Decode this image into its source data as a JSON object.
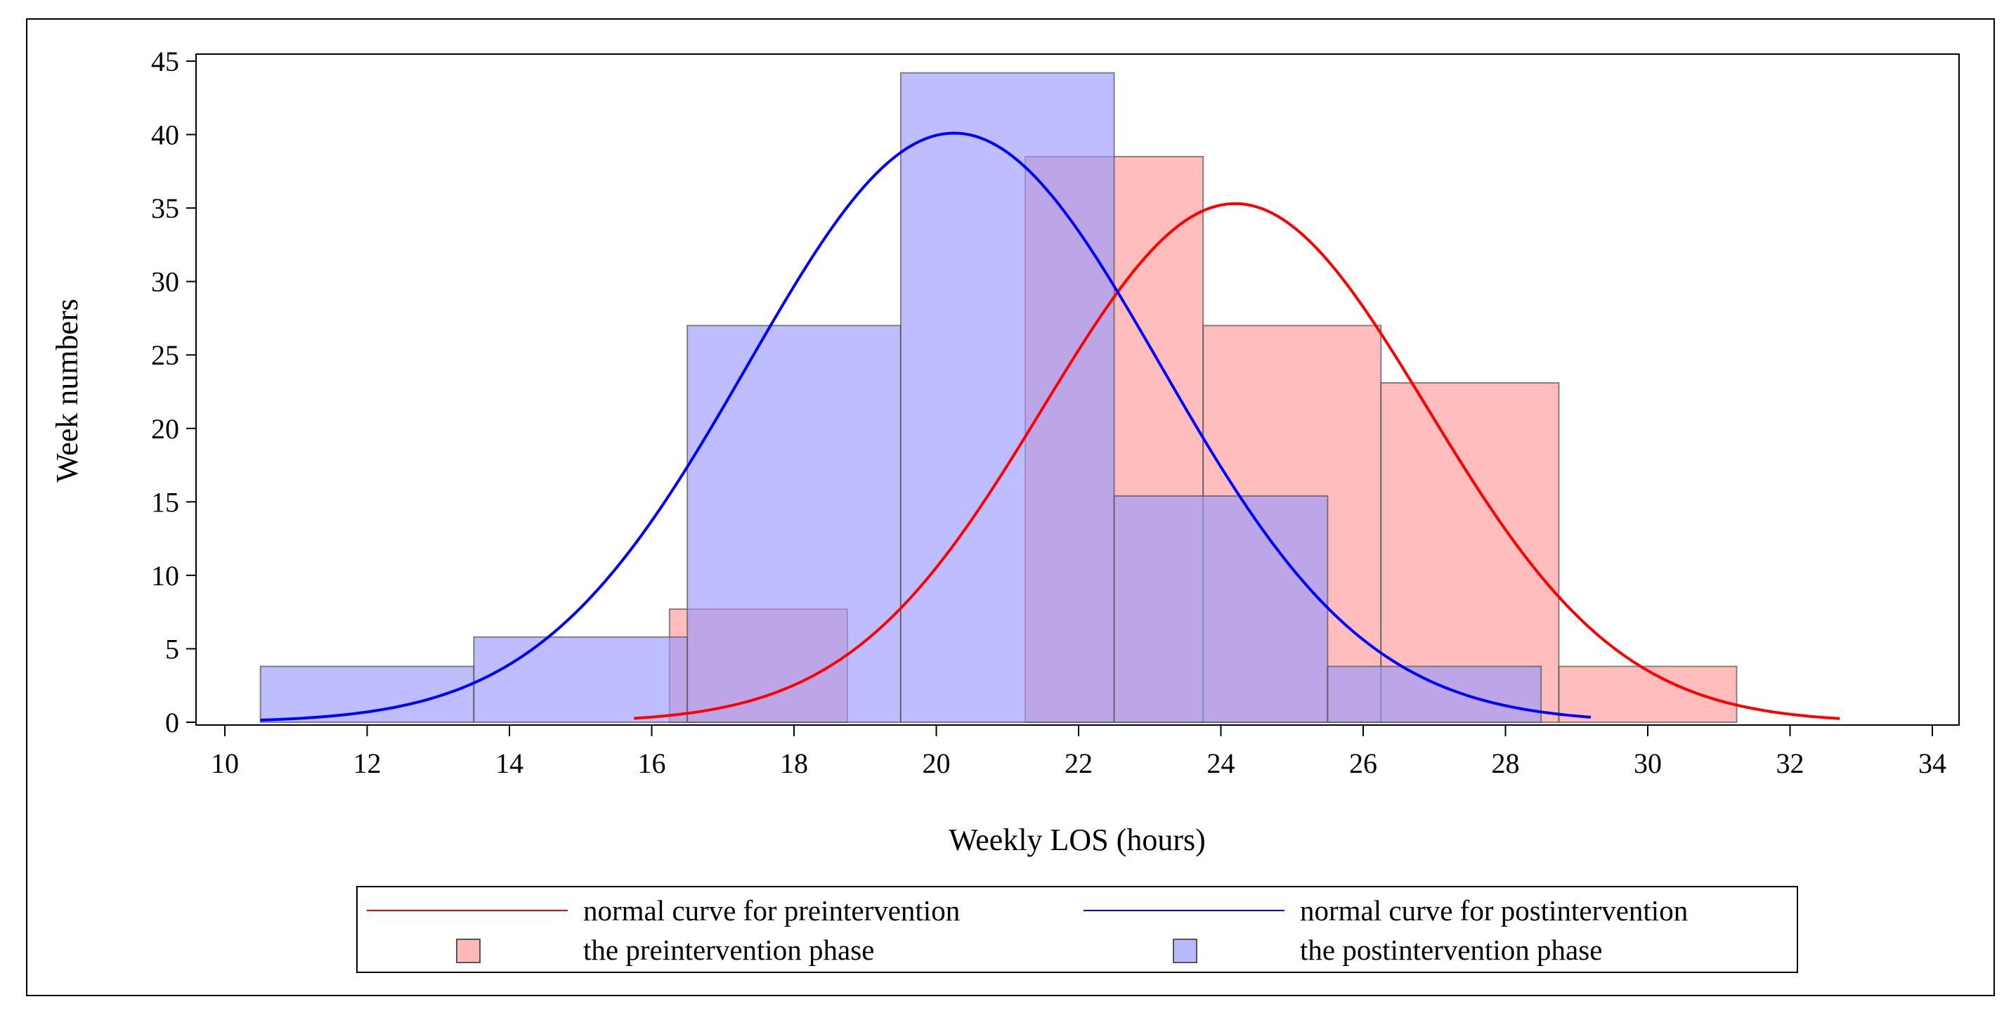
{
  "chart_data": {
    "type": "bar",
    "xlabel": "Weekly LOS (hours)",
    "ylabel": "Week numbers",
    "xlim": [
      10,
      34
    ],
    "ylim": [
      0,
      45
    ],
    "xticks": [
      10,
      12,
      14,
      16,
      18,
      20,
      22,
      24,
      26,
      28,
      30,
      32,
      34
    ],
    "yticks": [
      0,
      5,
      10,
      15,
      20,
      25,
      30,
      35,
      40,
      45
    ],
    "grid": false,
    "colors": {
      "pre_fill": "#ff9a9a",
      "pre_curve": "#ff0000",
      "post_fill": "#9a9aff",
      "post_curve": "#0000ff",
      "bar_stroke": "#555555"
    },
    "histograms": [
      {
        "name": "the preintervention phase",
        "bins": [
          {
            "start": 16.25,
            "end": 18.75,
            "value": 7.7
          },
          {
            "start": 18.75,
            "end": 21.25,
            "value": 0
          },
          {
            "start": 21.25,
            "end": 23.75,
            "value": 38.5
          },
          {
            "start": 23.75,
            "end": 26.25,
            "value": 27
          },
          {
            "start": 26.25,
            "end": 28.75,
            "value": 23.1
          },
          {
            "start": 28.75,
            "end": 31.25,
            "value": 3.8
          }
        ]
      },
      {
        "name": "the postintervention phase",
        "bins": [
          {
            "start": 10.5,
            "end": 13.5,
            "value": 3.8
          },
          {
            "start": 13.5,
            "end": 16.5,
            "value": 5.8
          },
          {
            "start": 16.5,
            "end": 19.5,
            "value": 27
          },
          {
            "start": 19.5,
            "end": 22.5,
            "value": 44.2
          },
          {
            "start": 22.5,
            "end": 25.5,
            "value": 15.4
          },
          {
            "start": 25.5,
            "end": 28.5,
            "value": 3.8
          }
        ]
      }
    ],
    "curves": [
      {
        "name": "normal curve for preintervention",
        "mean": 24.2,
        "sd": 2.7,
        "peak": 35.3,
        "x_range": [
          15.75,
          32.7
        ]
      },
      {
        "name": "normal curve for postintervention",
        "mean": 20.25,
        "sd": 2.9,
        "peak": 40.1,
        "x_range": [
          10.5,
          29.2
        ]
      }
    ],
    "legend": {
      "position": "bottom",
      "entries": [
        {
          "label": "normal curve for preintervention",
          "kind": "line",
          "series": "pre"
        },
        {
          "label": "normal curve for postintervention",
          "kind": "line",
          "series": "post"
        },
        {
          "label": "the preintervention phase",
          "kind": "box",
          "series": "pre"
        },
        {
          "label": "the postintervention phase",
          "kind": "box",
          "series": "post"
        }
      ]
    }
  }
}
